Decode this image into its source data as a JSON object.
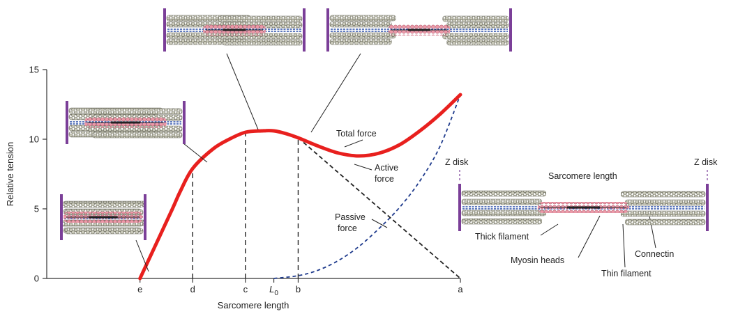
{
  "chart_data": {
    "type": "line",
    "title": "",
    "xlabel": "Sarcomere length",
    "ylabel": "Relative tension",
    "ylim": [
      0,
      15
    ],
    "y_ticks": [
      "0",
      "5",
      "10",
      "15"
    ],
    "x_markers": [
      "e",
      "d",
      "c",
      "L0",
      "b",
      "a"
    ],
    "x_marker_positions": {
      "e": 0.0,
      "d": 1.3,
      "c": 2.6,
      "L0": 3.3,
      "b": 3.9,
      "a": 7.9
    },
    "xlim": [
      -2.3,
      7.9
    ],
    "series": [
      {
        "name": "Total force",
        "color": "#e8201e",
        "style": "solid",
        "x": [
          0.0,
          0.4,
          0.8,
          1.0,
          1.3,
          1.8,
          2.2,
          2.6,
          3.0,
          3.3,
          3.6,
          3.9,
          4.4,
          4.9,
          5.4,
          5.9,
          6.4,
          6.9,
          7.4,
          7.9
        ],
        "y": [
          0.0,
          2.5,
          5.0,
          6.3,
          7.9,
          9.3,
          10.0,
          10.5,
          10.6,
          10.6,
          10.4,
          10.1,
          9.5,
          9.0,
          8.8,
          9.0,
          9.6,
          10.6,
          11.8,
          13.2
        ]
      },
      {
        "name": "Active force",
        "color": "#222222",
        "style": "dashed",
        "x": [
          3.9,
          7.9
        ],
        "y": [
          10.1,
          0.0
        ]
      },
      {
        "name": "Passive force",
        "color": "#1e3a8c",
        "style": "dashed",
        "x": [
          3.3,
          3.9,
          4.4,
          4.9,
          5.4,
          5.9,
          6.4,
          6.9,
          7.4,
          7.9
        ],
        "y": [
          0.0,
          0.2,
          0.6,
          1.3,
          2.3,
          3.6,
          5.1,
          7.0,
          9.5,
          13.2
        ]
      }
    ],
    "annotations": {
      "total_force": "Total force",
      "active_force_1": "Active",
      "active_force_2": "force",
      "passive_force_1": "Passive",
      "passive_force_2": "force"
    },
    "grid": false,
    "legend": "none"
  },
  "sarcomere_diagram": {
    "z_disk_left": "Z disk",
    "z_disk_right": "Z disk",
    "sarcomere_length": "Sarcomere length",
    "thick_filament": "Thick filament",
    "myosin_heads": "Myosin heads",
    "thin_filament": "Thin filament",
    "connectin": "Connectin"
  },
  "colors": {
    "z_disk": "#7b3f98",
    "thin_filament": "#c8c8b8",
    "thin_filament_edge": "#6f6f60",
    "myosin": "#e98a9b",
    "connectin": "#2a4fa8",
    "thick_core": "#222222"
  }
}
